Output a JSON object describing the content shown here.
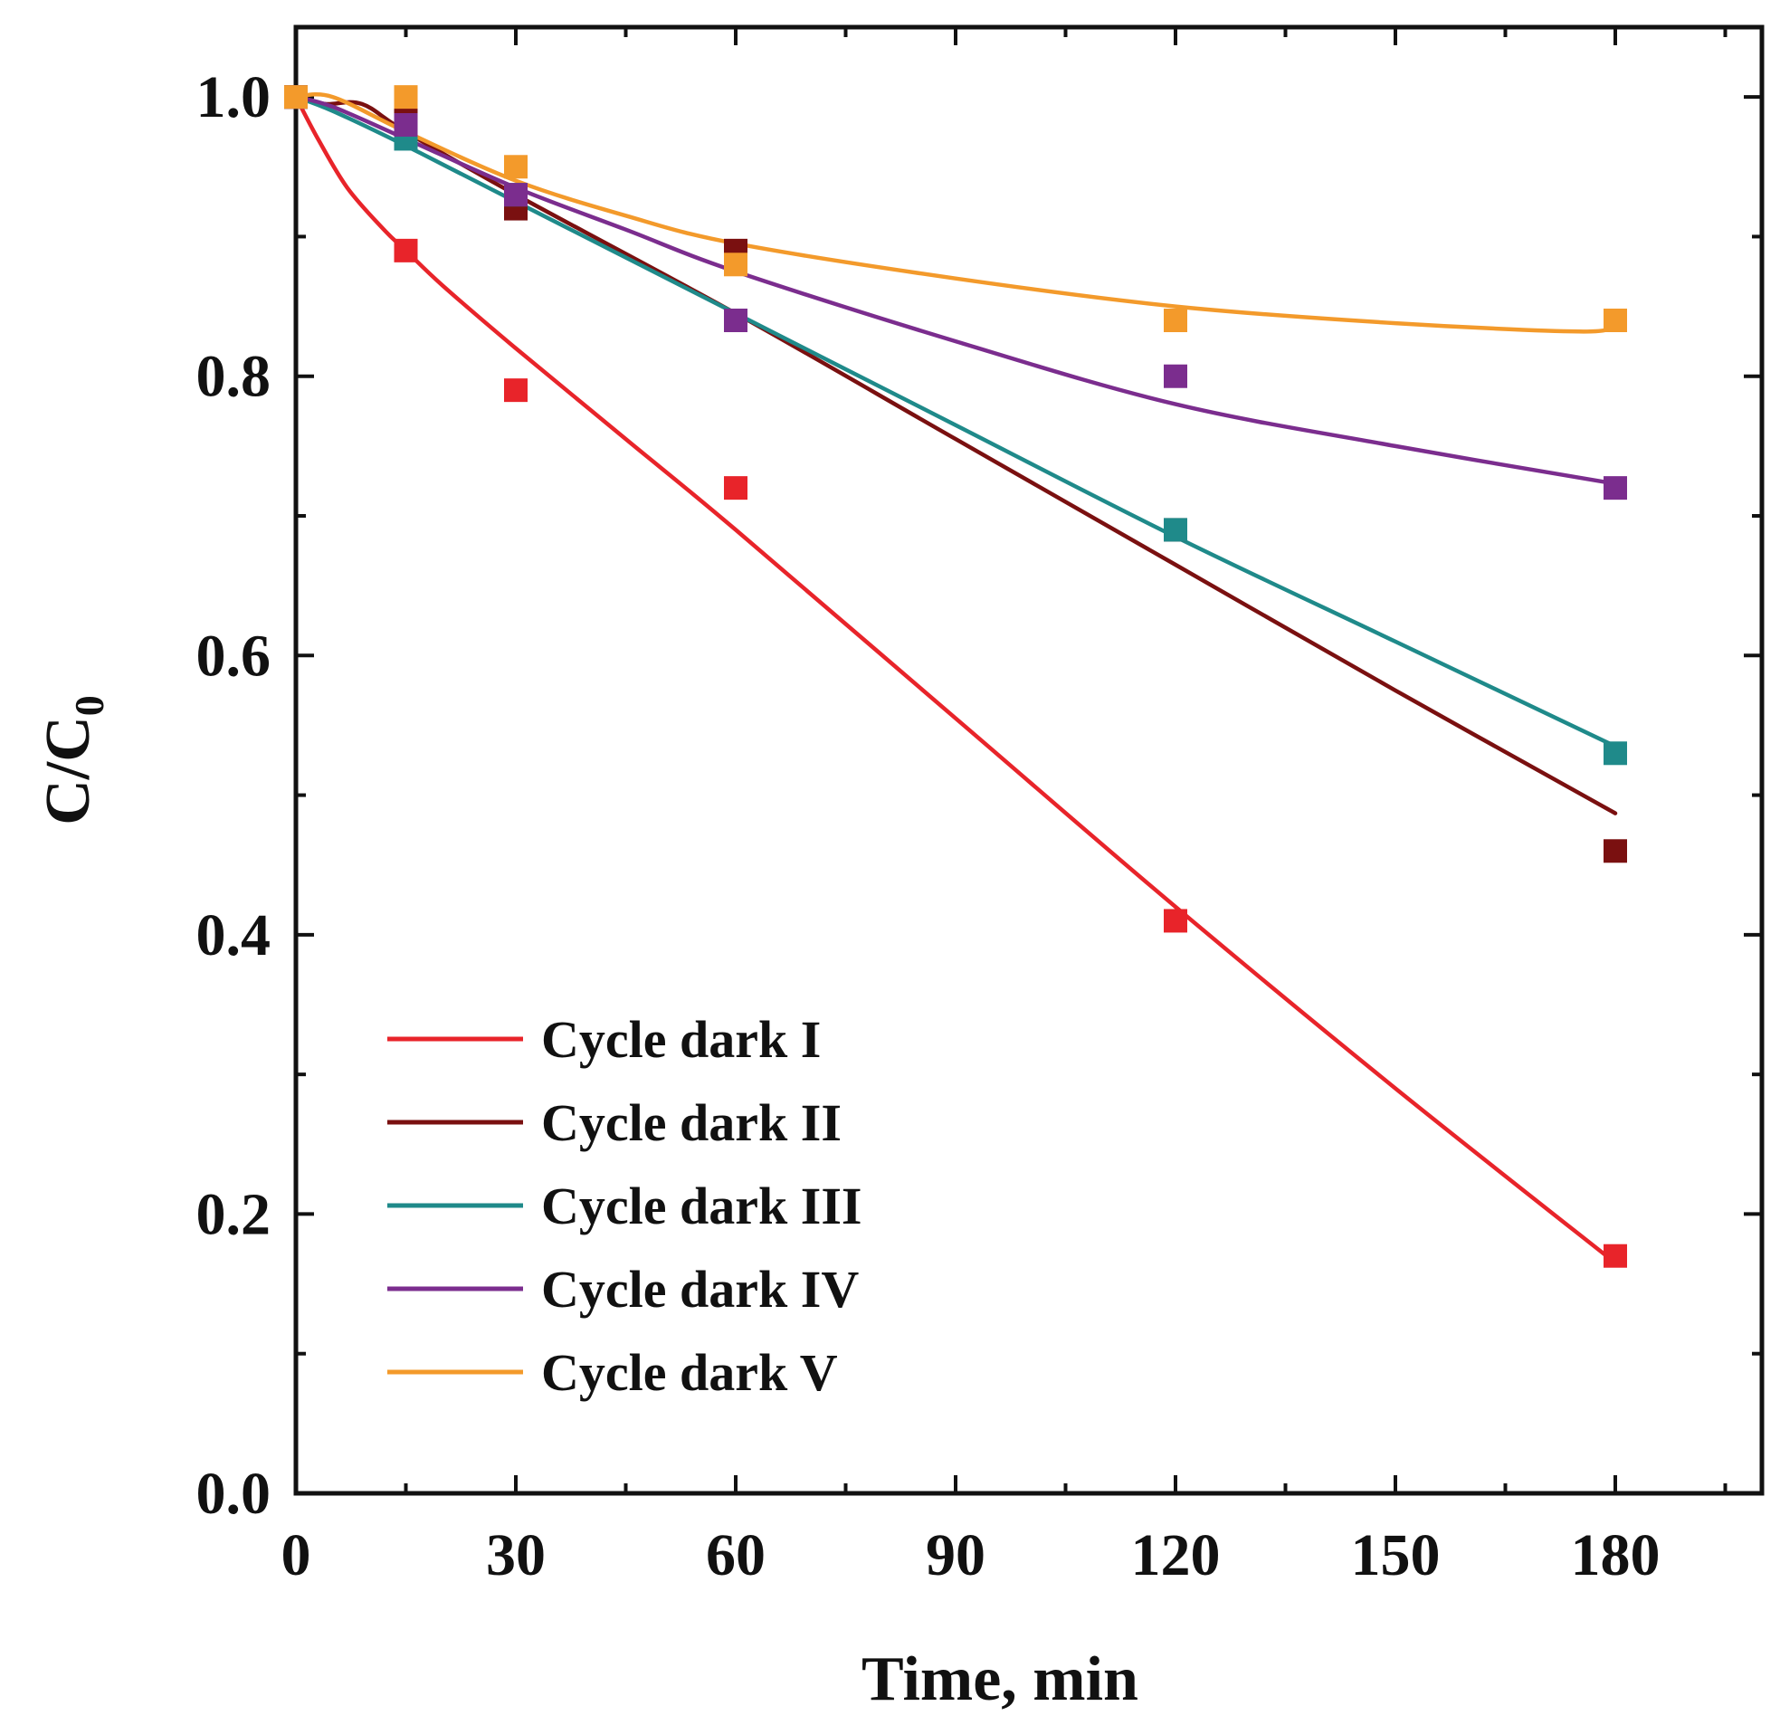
{
  "chart_data": {
    "type": "scatter",
    "title": "",
    "xlabel": "Time, min",
    "ylabel_main": "C/C",
    "ylabel_subscript": "0",
    "xlim": [
      0,
      200
    ],
    "ylim": [
      0,
      1.05
    ],
    "x_ticks": [
      0,
      30,
      60,
      90,
      120,
      150,
      180
    ],
    "x_tick_labels": [
      "0",
      "30",
      "60",
      "90",
      "120",
      "150",
      "180"
    ],
    "y_ticks": [
      0.0,
      0.2,
      0.4,
      0.6,
      0.8,
      1.0
    ],
    "y_tick_labels": [
      "0.0",
      "0.2",
      "0.4",
      "0.6",
      "0.8",
      "1.0"
    ],
    "x_minor_step": 15,
    "y_minor_step": 0.1,
    "grid": false,
    "legend_position": "bottom-left",
    "series": [
      {
        "name": "Cycle dark I",
        "color": "#e8242a",
        "points_x": [
          0,
          15,
          30,
          60,
          120,
          180
        ],
        "points_y": [
          1.0,
          0.89,
          0.79,
          0.72,
          0.41,
          0.17
        ],
        "fit_x": [
          0,
          3,
          7,
          12,
          15,
          20,
          30,
          45,
          60,
          90,
          120,
          150,
          180
        ],
        "fit_y": [
          1.0,
          0.97,
          0.935,
          0.905,
          0.89,
          0.865,
          0.82,
          0.755,
          0.69,
          0.555,
          0.42,
          0.29,
          0.165
        ]
      },
      {
        "name": "Cycle dark II",
        "color": "#7a1010",
        "points_x": [
          0,
          15,
          30,
          60,
          120,
          180
        ],
        "points_y": [
          1.0,
          0.985,
          0.92,
          0.89,
          0.69,
          0.46
        ],
        "fit_x": [
          0,
          4,
          9,
          15,
          30,
          60,
          90,
          120,
          150,
          180
        ],
        "fit_y": [
          1.0,
          0.995,
          0.995,
          0.975,
          0.93,
          0.845,
          0.755,
          0.665,
          0.575,
          0.487
        ]
      },
      {
        "name": "Cycle dark III",
        "color": "#1f8a8a",
        "points_x": [
          0,
          15,
          30,
          60,
          120,
          180
        ],
        "points_y": [
          1.0,
          0.97,
          0.93,
          0.84,
          0.69,
          0.53
        ],
        "fit_x": [
          0,
          5,
          15,
          30,
          60,
          90,
          120,
          150,
          180
        ],
        "fit_y": [
          1.0,
          0.99,
          0.965,
          0.925,
          0.845,
          0.765,
          0.685,
          0.61,
          0.535
        ]
      },
      {
        "name": "Cycle dark IV",
        "color": "#7b2d8e",
        "points_x": [
          0,
          15,
          30,
          60,
          120,
          180
        ],
        "points_y": [
          1.0,
          0.98,
          0.93,
          0.84,
          0.8,
          0.72
        ],
        "fit_x": [
          0,
          5,
          15,
          30,
          45,
          60,
          90,
          120,
          150,
          180
        ],
        "fit_y": [
          1.0,
          0.993,
          0.97,
          0.935,
          0.905,
          0.875,
          0.825,
          0.78,
          0.75,
          0.723
        ]
      },
      {
        "name": "Cycle dark V",
        "color": "#f39a2b",
        "points_x": [
          0,
          15,
          30,
          60,
          120,
          180
        ],
        "points_y": [
          1.0,
          1.0,
          0.95,
          0.88,
          0.84,
          0.84
        ],
        "fit_x": [
          0,
          5,
          15,
          30,
          45,
          60,
          90,
          120,
          150,
          175,
          180
        ],
        "fit_y": [
          1.0,
          1.0,
          0.975,
          0.94,
          0.915,
          0.895,
          0.87,
          0.85,
          0.838,
          0.832,
          0.836
        ]
      }
    ]
  }
}
